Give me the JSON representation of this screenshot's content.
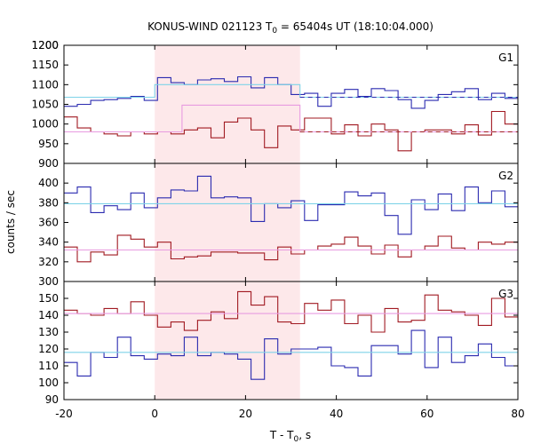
{
  "chart_data": {
    "type": "line",
    "title_prefix": "KONUS-WIND 021123 T",
    "title_sub": "0",
    "title_suffix": " = 65404s UT (18:10:04.000)",
    "xlabel_prefix": "T - T",
    "xlabel_sub": "0",
    "xlabel_suffix": ", s",
    "ylabel": "counts / sec",
    "xlim": [
      -20,
      80
    ],
    "xticks": [
      -20,
      0,
      20,
      40,
      60,
      80
    ],
    "highlight": {
      "x_start": 0,
      "x_end": 32,
      "color": "#fde8ea"
    },
    "colors": {
      "blue": "#2b2bb0",
      "red": "#a11a22",
      "cyan": "#7fd3e8",
      "pink": "#e89be0"
    },
    "panels": [
      {
        "label": "G1",
        "ylim": [
          900,
          1200
        ],
        "yticks": [
          900,
          950,
          1000,
          1050,
          1100,
          1150,
          1200
        ],
        "series": [
          {
            "color": "blue",
            "x_start": -20,
            "bin_width": 2.944,
            "values": [
              1045,
              1050,
              1060,
              1062,
              1065,
              1070,
              1060,
              1118,
              1105,
              1100,
              1112,
              1115,
              1108,
              1120,
              1092,
              1118,
              1100,
              1075,
              1078,
              1045,
              1078,
              1088,
              1070,
              1090,
              1085,
              1062,
              1040,
              1060,
              1075,
              1082,
              1090,
              1062,
              1078,
              1065
            ]
          },
          {
            "color": "red",
            "x_start": -20,
            "bin_width": 2.944,
            "values": [
              1018,
              990,
              980,
              975,
              970,
              980,
              975,
              980,
              975,
              985,
              990,
              965,
              1005,
              1015,
              985,
              940,
              995,
              985,
              1015,
              1015,
              975,
              998,
              970,
              1000,
              985,
              932,
              980,
              985,
              985,
              975,
              998,
              972,
              1032,
              1000
            ]
          },
          {
            "color": "cyan",
            "type": "step",
            "points": [
              [
                -20,
                1068
              ],
              [
                0,
                1068
              ],
              [
                0,
                1100
              ],
              [
                32,
                1100
              ],
              [
                32,
                1068
              ],
              [
                80,
                1068
              ]
            ]
          },
          {
            "color": "pink",
            "type": "step",
            "points": [
              [
                -20,
                980
              ],
              [
                6,
                980
              ],
              [
                6,
                1048
              ],
              [
                32,
                1048
              ],
              [
                32,
                980
              ],
              [
                80,
                980
              ]
            ]
          },
          {
            "color": "blue",
            "type": "dashed",
            "points": [
              [
                32,
                1068
              ],
              [
                80,
                1068
              ]
            ]
          },
          {
            "color": "red",
            "type": "dashed",
            "points": [
              [
                32,
                980
              ],
              [
                80,
                980
              ]
            ]
          }
        ]
      },
      {
        "label": "G2",
        "ylim": [
          300,
          420
        ],
        "yticks": [
          300,
          320,
          340,
          360,
          380,
          400
        ],
        "series": [
          {
            "color": "blue",
            "x_start": -20,
            "bin_width": 2.944,
            "values": [
              390,
              396,
              370,
              377,
              373,
              390,
              375,
              385,
              393,
              392,
              407,
              385,
              386,
              385,
              361,
              379,
              375,
              382,
              362,
              378,
              378,
              391,
              387,
              390,
              367,
              348,
              383,
              373,
              389,
              372,
              396,
              380,
              392,
              376
            ]
          },
          {
            "color": "red",
            "x_start": -20,
            "bin_width": 2.944,
            "values": [
              335,
              320,
              330,
              327,
              347,
              343,
              335,
              340,
              323,
              325,
              326,
              330,
              330,
              329,
              329,
              322,
              335,
              328,
              332,
              336,
              338,
              345,
              336,
              328,
              337,
              325,
              332,
              336,
              346,
              334,
              332,
              340,
              338,
              340
            ]
          },
          {
            "color": "cyan",
            "type": "line",
            "points": [
              [
                -20,
                379
              ],
              [
                80,
                379
              ]
            ]
          },
          {
            "color": "pink",
            "type": "line",
            "points": [
              [
                -20,
                332
              ],
              [
                80,
                332
              ]
            ]
          }
        ]
      },
      {
        "label": "G3",
        "ylim": [
          90,
          160
        ],
        "yticks": [
          90,
          100,
          110,
          120,
          130,
          140,
          150
        ],
        "series": [
          {
            "color": "blue",
            "x_start": -20,
            "bin_width": 2.944,
            "values": [
              112,
              104,
              118,
              115,
              127,
              116,
              114,
              117,
              116,
              127,
              116,
              118,
              117,
              114,
              102,
              126,
              117,
              120,
              120,
              121,
              110,
              109,
              104,
              122,
              122,
              117,
              131,
              109,
              127,
              112,
              116,
              123,
              115,
              110
            ]
          },
          {
            "color": "red",
            "x_start": -20,
            "bin_width": 2.944,
            "values": [
              143,
              141,
              140,
              144,
              141,
              148,
              140,
              133,
              136,
              131,
              137,
              142,
              138,
              154,
              146,
              151,
              136,
              135,
              147,
              143,
              149,
              135,
              140,
              130,
              144,
              136,
              137,
              152,
              143,
              142,
              140,
              134,
              150,
              139
            ]
          },
          {
            "color": "cyan",
            "type": "line",
            "points": [
              [
                -20,
                118
              ],
              [
                80,
                118
              ]
            ]
          },
          {
            "color": "pink",
            "type": "line",
            "points": [
              [
                -20,
                141
              ],
              [
                80,
                141
              ]
            ]
          }
        ]
      }
    ]
  }
}
